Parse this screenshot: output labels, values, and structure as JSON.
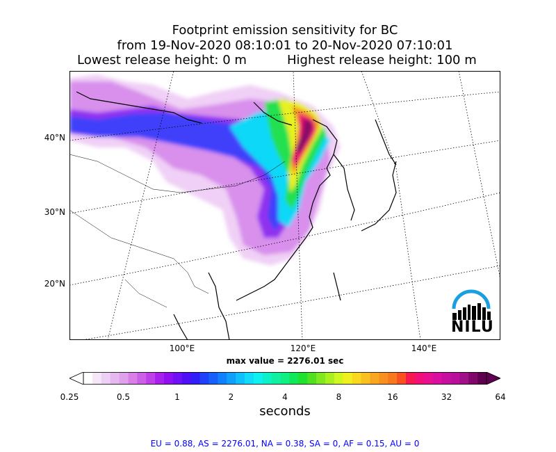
{
  "title": {
    "line1": "Footprint emission sensitivity for BC",
    "line2": "from 19-Nov-2020 08:10:01 to 20-Nov-2020 07:10:01",
    "lowest": "Lowest release height: 0 m",
    "highest": "Highest release height: 100 m"
  },
  "map": {
    "lat_labels": [
      "40°N",
      "30°N",
      "20°N"
    ],
    "lon_labels": [
      "100°E",
      "120°E",
      "140°E"
    ],
    "max_value": "max value = 2276.01 sec",
    "logo_text": "NILU"
  },
  "colorbar": {
    "ticks": [
      "0.25",
      "0.5",
      "1",
      "2",
      "4",
      "8",
      "16",
      "32",
      "64"
    ],
    "label": "seconds",
    "colors": [
      "#ffffff",
      "#f6e6f8",
      "#eed0f4",
      "#e6b8f0",
      "#dfa0ec",
      "#d880e8",
      "#cc60e6",
      "#bf40e8",
      "#a820ec",
      "#9010f0",
      "#7010f4",
      "#5010f6",
      "#3020f8",
      "#2040fa",
      "#1860fc",
      "#1080fc",
      "#10a0fc",
      "#10c0fc",
      "#10dcf8",
      "#10f0f0",
      "#10f0c8",
      "#10f0a0",
      "#10f080",
      "#10e858",
      "#20e030",
      "#50e020",
      "#80e820",
      "#a8f020",
      "#d0f820",
      "#f0f020",
      "#f8d820",
      "#f8c020",
      "#f8a820",
      "#f89020",
      "#f87820",
      "#f85020",
      "#f81850",
      "#f01078",
      "#e81090",
      "#d810a0",
      "#c810a0",
      "#b81098",
      "#a01088",
      "#800868",
      "#600050"
    ]
  },
  "footer": "EU = 0.88,  AS = 2276.01,  NA = 0.38,  SA = 0,  AF = 0.15,  AU = 0"
}
